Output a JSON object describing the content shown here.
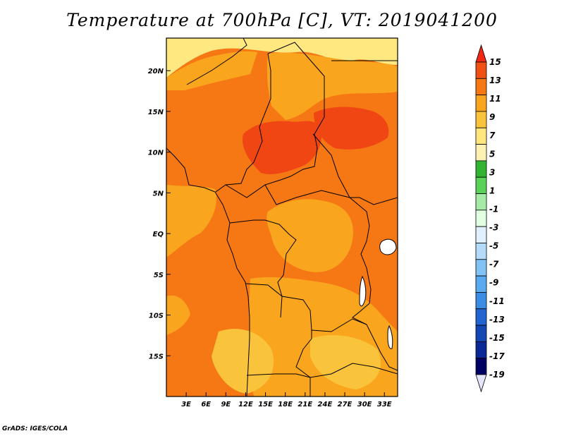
{
  "title": "Temperature at 700hPa [C], VT: 2019041200",
  "credit": "GrADS: IGES/COLA",
  "map": {
    "lon_range": [
      0,
      35
    ],
    "lat_range": [
      -20,
      24
    ],
    "lat_ticks": [
      {
        "label": "20N",
        "lat": 20
      },
      {
        "label": "15N",
        "lat": 15
      },
      {
        "label": "10N",
        "lat": 10
      },
      {
        "label": "5N",
        "lat": 5
      },
      {
        "label": "EQ",
        "lat": 0
      },
      {
        "label": "5S",
        "lat": -5
      },
      {
        "label": "10S",
        "lat": -10
      },
      {
        "label": "15S",
        "lat": -15
      }
    ],
    "lon_ticks": [
      {
        "label": "3E",
        "lon": 3
      },
      {
        "label": "6E",
        "lon": 6
      },
      {
        "label": "9E",
        "lon": 9
      },
      {
        "label": "12E",
        "lon": 12
      },
      {
        "label": "15E",
        "lon": 15
      },
      {
        "label": "18E",
        "lon": 18
      },
      {
        "label": "21E",
        "lon": 21
      },
      {
        "label": "24E",
        "lon": 24
      },
      {
        "label": "27E",
        "lon": 27
      },
      {
        "label": "30E",
        "lon": 30
      },
      {
        "label": "33E",
        "lon": 33
      }
    ],
    "background_band": "11 to 13",
    "regions": [
      {
        "name": "sahara-north-warm",
        "band": "5 to 7",
        "color": "#ffe880"
      },
      {
        "name": "northwest-9to11",
        "band": "9 to 11",
        "color": "#faa51e"
      },
      {
        "name": "northeast-9to11",
        "band": "9 to 11",
        "color": "#faa51e"
      },
      {
        "name": "central-core-13to15",
        "band": "13 to 15",
        "color": "#f04614"
      },
      {
        "name": "sudan-core-13to15",
        "band": "13 to 15",
        "color": "#f04614"
      },
      {
        "name": "congo-basin-9to11",
        "band": "9 to 11",
        "color": "#faa51e"
      },
      {
        "name": "angola-zambia-9to11",
        "band": "9 to 11",
        "color": "#faa51e"
      },
      {
        "name": "south-7to9",
        "band": "7 to 9",
        "color": "#fac33c"
      },
      {
        "name": "atlantic-9to11",
        "band": "9 to 11",
        "color": "#faa51e"
      }
    ]
  },
  "colorbar": {
    "levels": [
      "15",
      "13",
      "11",
      "9",
      "7",
      "5",
      "3",
      "1",
      "-1",
      "-3",
      "-5",
      "-7",
      "-9",
      "-11",
      "-13",
      "-15",
      "-17",
      "-19"
    ],
    "colors": [
      "#f02814",
      "#f05014",
      "#f57814",
      "#faa51e",
      "#fac33c",
      "#ffe67d",
      "#fff0b4",
      "#32b432",
      "#5ad25a",
      "#a5eba5",
      "#e1ffe1",
      "#e1f0ff",
      "#b4dcfa",
      "#82c3f5",
      "#5aaaf0",
      "#3c8ce6",
      "#2364d2",
      "#1446b4",
      "#0a2896",
      "#000064",
      "#e6e6fa"
    ]
  }
}
